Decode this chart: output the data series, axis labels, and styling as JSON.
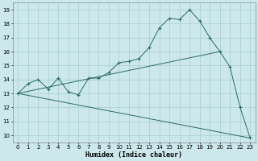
{
  "xlabel": "Humidex (Indice chaleur)",
  "bg_color": "#cce8ec",
  "line_color": "#2a6b62",
  "grid_color": "#a8cdd2",
  "xlim": [
    -0.5,
    23.5
  ],
  "ylim": [
    9.5,
    19.5
  ],
  "xticks": [
    0,
    1,
    2,
    3,
    4,
    5,
    6,
    7,
    8,
    9,
    10,
    11,
    12,
    13,
    14,
    15,
    16,
    17,
    18,
    19,
    20,
    21,
    22,
    23
  ],
  "yticks": [
    10,
    11,
    12,
    13,
    14,
    15,
    16,
    17,
    18,
    19
  ],
  "curve_x": [
    0,
    1,
    2,
    3,
    4,
    5,
    6,
    7,
    8,
    9,
    10,
    11,
    12,
    13,
    14,
    15,
    16,
    17,
    18,
    19,
    20,
    21,
    22,
    23
  ],
  "curve_y": [
    13.0,
    13.7,
    14.0,
    13.3,
    14.1,
    13.1,
    12.9,
    14.1,
    14.1,
    14.5,
    15.2,
    15.3,
    15.5,
    16.3,
    17.7,
    18.4,
    18.3,
    19.0,
    18.2,
    17.0,
    16.0,
    14.9,
    12.0,
    9.8
  ],
  "regline1_x": [
    0,
    20
  ],
  "regline1_y": [
    13.0,
    16.0
  ],
  "regline2_x": [
    0,
    23
  ],
  "regline2_y": [
    13.0,
    9.8
  ]
}
